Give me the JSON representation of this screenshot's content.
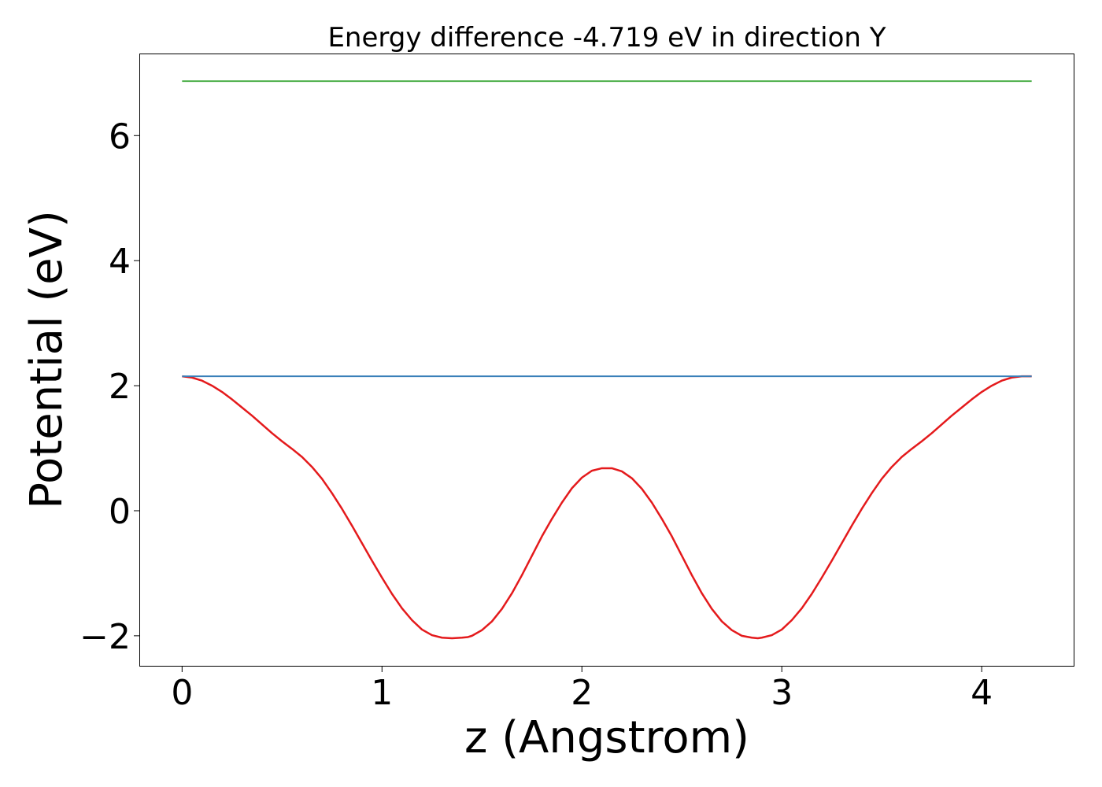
{
  "chart_data": {
    "type": "line",
    "title": "Energy difference -4.719 eV in direction Y",
    "xlabel": "z (Angstrom)",
    "ylabel": "Potential (eV)",
    "xlim": [
      -0.21,
      4.46
    ],
    "ylim": [
      -2.48,
      7.3
    ],
    "xticks": [
      0,
      1,
      2,
      3,
      4
    ],
    "yticks": [
      -2,
      0,
      2,
      4,
      6
    ],
    "xtick_labels": [
      "0",
      "1",
      "2",
      "3",
      "4"
    ],
    "ytick_labels": [
      "−2",
      "0",
      "2",
      "4",
      "6"
    ],
    "grid": false,
    "series": [
      {
        "color": "#e41a1c",
        "x": [
          0,
          0.05,
          0.1,
          0.15,
          0.2,
          0.25,
          0.3,
          0.35,
          0.4,
          0.45,
          0.5,
          0.55,
          0.6,
          0.65,
          0.7,
          0.75,
          0.8,
          0.85,
          0.9,
          0.95,
          1.0,
          1.05,
          1.1,
          1.15,
          1.2,
          1.25,
          1.3,
          1.35,
          1.4,
          1.43,
          1.45,
          1.5,
          1.55,
          1.6,
          1.65,
          1.7,
          1.75,
          1.8,
          1.85,
          1.9,
          1.95,
          2.0,
          2.05,
          2.1,
          2.15,
          2.2,
          2.25,
          2.3,
          2.35,
          2.4,
          2.45,
          2.5,
          2.55,
          2.6,
          2.65,
          2.7,
          2.75,
          2.8,
          2.85,
          2.88,
          2.9,
          2.95,
          3.0,
          3.05,
          3.1,
          3.15,
          3.2,
          3.25,
          3.3,
          3.35,
          3.4,
          3.45,
          3.5,
          3.55,
          3.6,
          3.65,
          3.7,
          3.75,
          3.8,
          3.85,
          3.9,
          3.95,
          4.0,
          4.05,
          4.1,
          4.15,
          4.2,
          4.25
        ],
        "y": [
          2.15,
          2.13,
          2.08,
          2.0,
          1.9,
          1.78,
          1.65,
          1.52,
          1.38,
          1.24,
          1.11,
          0.99,
          0.86,
          0.7,
          0.51,
          0.28,
          0.03,
          -0.24,
          -0.52,
          -0.8,
          -1.07,
          -1.33,
          -1.56,
          -1.75,
          -1.9,
          -1.99,
          -2.03,
          -2.04,
          -2.03,
          -2.02,
          -2.0,
          -1.91,
          -1.77,
          -1.57,
          -1.32,
          -1.03,
          -0.72,
          -0.41,
          -0.13,
          0.13,
          0.36,
          0.53,
          0.64,
          0.68,
          0.68,
          0.63,
          0.52,
          0.35,
          0.13,
          -0.13,
          -0.41,
          -0.72,
          -1.03,
          -1.32,
          -1.57,
          -1.77,
          -1.91,
          -2.0,
          -2.03,
          -2.04,
          -2.03,
          -1.99,
          -1.9,
          -1.75,
          -1.56,
          -1.33,
          -1.07,
          -0.8,
          -0.52,
          -0.24,
          0.03,
          0.28,
          0.51,
          0.7,
          0.86,
          0.99,
          1.11,
          1.24,
          1.38,
          1.52,
          1.65,
          1.78,
          1.9,
          2.0,
          2.08,
          2.13,
          2.15,
          2.15
        ]
      },
      {
        "color": "#377eb8",
        "x": [
          0,
          4.25
        ],
        "y": [
          2.15,
          2.15
        ]
      },
      {
        "color": "#4daf4a",
        "x": [
          0,
          4.25
        ],
        "y": [
          6.87,
          6.87
        ]
      }
    ]
  }
}
